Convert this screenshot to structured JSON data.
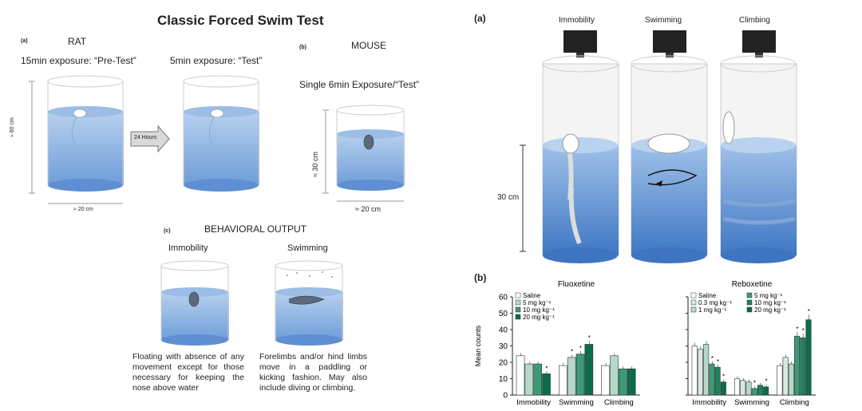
{
  "left": {
    "title": "Classic Forced Swim Test",
    "a_tag": "(a)",
    "rat_label": "RAT",
    "pretest_label": "15min exposure: “Pre-Test”",
    "test_label": "5min exposure: “Test”",
    "height_label": "≈ 60 cm",
    "width_label": "≈ 20 cm",
    "arrow_label": "24 Hours",
    "b_tag": "(b)",
    "mouse_label": "MOUSE",
    "mouse_exposure": "Single 6min Exposure/“Test”",
    "mouse_height": "≈ 30 cm",
    "mouse_width": "≈ 20 cm",
    "c_tag": "(c)",
    "behavioral_title": "BEHAVIORAL OUTPUT",
    "immobility_label": "Immobility",
    "swimming_label": "Swimming",
    "immobility_desc": "Floating with absence of any movement except for those necessary for keeping the nose above water",
    "swimming_desc": "Forelimbs and/or hind limbs move in a paddling or kicking fashion. May also include diving or climbing."
  },
  "right": {
    "a_tag": "(a)",
    "b_tag": "(b)",
    "behaviors": [
      "Immobility",
      "Swimming",
      "Climbing"
    ],
    "depth_label": "30 cm"
  },
  "colors": {
    "water": "#5b8fd1",
    "water_light": "#a9c6ea",
    "bar_dark": "#0d6b4e",
    "bar_mid": "#3d9a78",
    "bar_light": "#b5d9c9"
  },
  "chart_data": [
    {
      "type": "bar",
      "title": "Fluoxetine",
      "ylabel": "Mean counts",
      "ylim": [
        0,
        60
      ],
      "yticks": [
        0,
        10,
        20,
        30,
        40,
        50,
        60
      ],
      "categories": [
        "Immobility",
        "Swimming",
        "Climbing"
      ],
      "legend": [
        "Saline",
        "5 mg kg⁻¹",
        "10 mg kg⁻¹",
        "20 mg kg⁻¹"
      ],
      "series": [
        {
          "name": "Saline",
          "values": [
            24,
            18,
            18
          ],
          "significant": [
            false,
            false,
            false
          ]
        },
        {
          "name": "5 mg kg⁻¹",
          "values": [
            19,
            23,
            24
          ],
          "significant": [
            false,
            true,
            false
          ]
        },
        {
          "name": "10 mg kg⁻¹",
          "values": [
            19,
            25,
            16
          ],
          "significant": [
            false,
            true,
            false
          ]
        },
        {
          "name": "20 mg kg⁻¹",
          "values": [
            13,
            31,
            16
          ],
          "significant": [
            true,
            true,
            false
          ]
        }
      ]
    },
    {
      "type": "bar",
      "title": "Reboxetine",
      "ylim": [
        0,
        60
      ],
      "categories": [
        "Immobility",
        "Swimming",
        "Climbing"
      ],
      "legend": [
        "Saline",
        "0.3 mg kg⁻¹",
        "1 mg kg⁻¹",
        "5 mg kg⁻¹",
        "10 mg kg⁻¹",
        "20 mg kg⁻¹"
      ],
      "series": [
        {
          "name": "Saline",
          "values": [
            30,
            10,
            18
          ],
          "significant": [
            false,
            false,
            false
          ]
        },
        {
          "name": "0.3 mg kg⁻¹",
          "values": [
            28,
            9,
            23
          ],
          "significant": [
            false,
            false,
            false
          ]
        },
        {
          "name": "1 mg kg⁻¹",
          "values": [
            31,
            8,
            19
          ],
          "significant": [
            false,
            false,
            false
          ]
        },
        {
          "name": "5 mg kg⁻¹",
          "values": [
            19,
            4,
            36
          ],
          "significant": [
            true,
            true,
            true
          ]
        },
        {
          "name": "10 mg kg⁻¹",
          "values": [
            17,
            6,
            35
          ],
          "significant": [
            true,
            false,
            true
          ]
        },
        {
          "name": "20 mg kg⁻¹",
          "values": [
            8,
            5,
            46
          ],
          "significant": [
            true,
            true,
            true
          ]
        }
      ]
    }
  ]
}
